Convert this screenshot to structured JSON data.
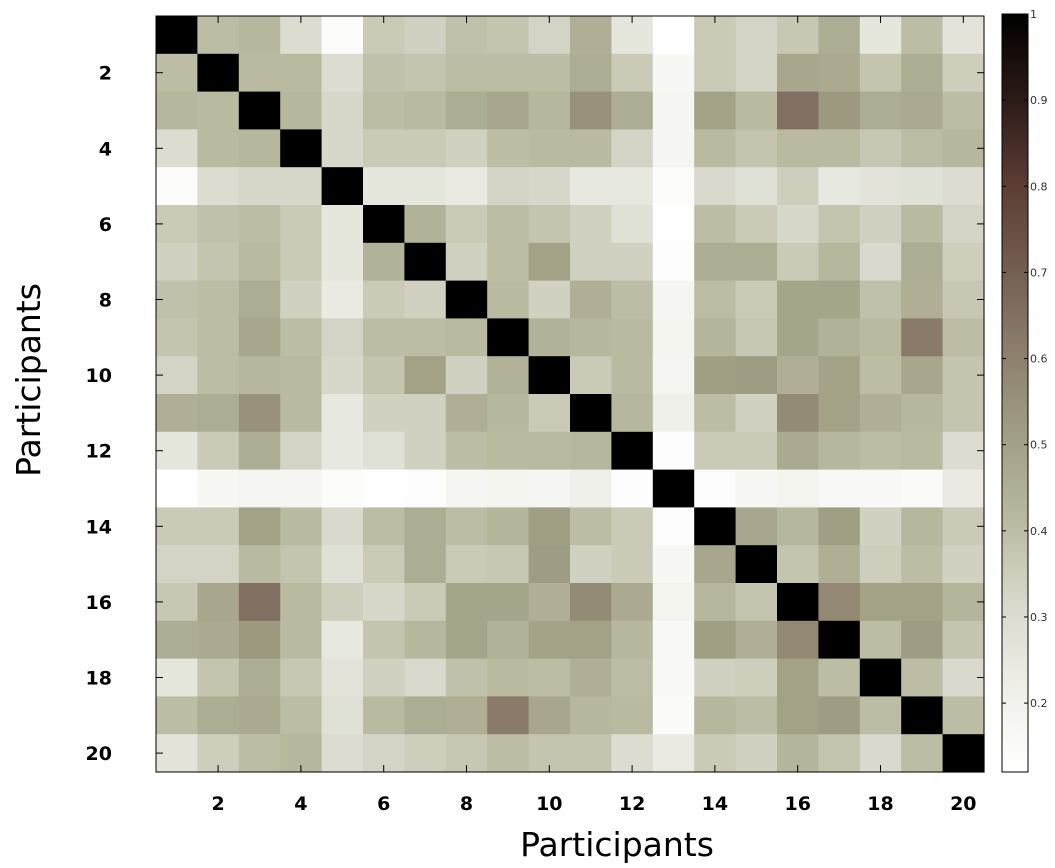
{
  "chart_data": {
    "type": "heatmap",
    "title": "",
    "xlabel": "Participants",
    "ylabel": "Participants",
    "x_ticks": [
      "2",
      "4",
      "6",
      "8",
      "10",
      "12",
      "14",
      "16",
      "18",
      "20"
    ],
    "y_ticks": [
      "2",
      "4",
      "6",
      "8",
      "10",
      "12",
      "14",
      "16",
      "18",
      "20"
    ],
    "colorbar_ticks": [
      "1",
      "0.9",
      "0.8",
      "0.7",
      "0.6",
      "0.5",
      "0.4",
      "0.3",
      "0.2"
    ],
    "colorbar_range": [
      0.12,
      1.0
    ],
    "colormap": [
      "#ffffff",
      "#efefe9",
      "#d8d9cb",
      "#b9b9a0",
      "#a09f84",
      "#8c7e6c",
      "#735c52",
      "#5a3c34",
      "#2c1a16",
      "#000000"
    ],
    "grid": false,
    "matrix": [
      [
        1.0,
        0.4,
        0.42,
        0.3,
        0.14,
        0.36,
        0.34,
        0.39,
        0.38,
        0.33,
        0.45,
        0.26,
        0.11,
        0.36,
        0.33,
        0.37,
        0.46,
        0.26,
        0.4,
        0.27
      ],
      [
        0.4,
        1.0,
        0.41,
        0.41,
        0.3,
        0.39,
        0.38,
        0.4,
        0.4,
        0.4,
        0.46,
        0.36,
        0.17,
        0.36,
        0.33,
        0.48,
        0.47,
        0.38,
        0.46,
        0.35
      ],
      [
        0.42,
        0.41,
        1.0,
        0.42,
        0.32,
        0.4,
        0.41,
        0.46,
        0.48,
        0.42,
        0.55,
        0.46,
        0.18,
        0.5,
        0.41,
        0.65,
        0.53,
        0.46,
        0.47,
        0.4
      ],
      [
        0.3,
        0.41,
        0.42,
        1.0,
        0.32,
        0.36,
        0.36,
        0.34,
        0.4,
        0.41,
        0.41,
        0.33,
        0.18,
        0.41,
        0.38,
        0.41,
        0.41,
        0.37,
        0.4,
        0.42
      ],
      [
        0.14,
        0.3,
        0.32,
        0.32,
        1.0,
        0.26,
        0.26,
        0.24,
        0.33,
        0.32,
        0.25,
        0.25,
        0.14,
        0.31,
        0.28,
        0.35,
        0.25,
        0.27,
        0.28,
        0.3
      ],
      [
        0.36,
        0.39,
        0.4,
        0.36,
        0.26,
        1.0,
        0.44,
        0.36,
        0.4,
        0.38,
        0.34,
        0.28,
        0.12,
        0.4,
        0.36,
        0.32,
        0.38,
        0.34,
        0.41,
        0.33
      ],
      [
        0.34,
        0.38,
        0.41,
        0.36,
        0.26,
        0.44,
        1.0,
        0.34,
        0.4,
        0.5,
        0.34,
        0.34,
        0.13,
        0.46,
        0.46,
        0.36,
        0.42,
        0.31,
        0.46,
        0.35
      ],
      [
        0.39,
        0.4,
        0.46,
        0.34,
        0.24,
        0.36,
        0.34,
        1.0,
        0.41,
        0.34,
        0.45,
        0.4,
        0.18,
        0.4,
        0.36,
        0.49,
        0.49,
        0.39,
        0.45,
        0.37
      ],
      [
        0.38,
        0.4,
        0.48,
        0.4,
        0.33,
        0.4,
        0.4,
        0.41,
        1.0,
        0.44,
        0.42,
        0.41,
        0.19,
        0.43,
        0.37,
        0.49,
        0.44,
        0.41,
        0.62,
        0.4
      ],
      [
        0.33,
        0.4,
        0.42,
        0.41,
        0.32,
        0.38,
        0.5,
        0.34,
        0.44,
        1.0,
        0.36,
        0.41,
        0.18,
        0.51,
        0.52,
        0.45,
        0.5,
        0.4,
        0.48,
        0.38
      ],
      [
        0.45,
        0.46,
        0.55,
        0.41,
        0.25,
        0.34,
        0.34,
        0.45,
        0.42,
        0.36,
        1.0,
        0.42,
        0.21,
        0.4,
        0.34,
        0.57,
        0.5,
        0.45,
        0.42,
        0.38
      ],
      [
        0.26,
        0.36,
        0.46,
        0.33,
        0.25,
        0.28,
        0.34,
        0.4,
        0.41,
        0.41,
        0.42,
        1.0,
        0.13,
        0.36,
        0.36,
        0.47,
        0.42,
        0.4,
        0.41,
        0.3
      ],
      [
        0.11,
        0.17,
        0.18,
        0.18,
        0.14,
        0.12,
        0.13,
        0.18,
        0.19,
        0.18,
        0.21,
        0.13,
        1.0,
        0.13,
        0.17,
        0.19,
        0.16,
        0.16,
        0.15,
        0.24
      ],
      [
        0.36,
        0.36,
        0.5,
        0.41,
        0.31,
        0.4,
        0.46,
        0.4,
        0.43,
        0.51,
        0.4,
        0.36,
        0.13,
        1.0,
        0.48,
        0.42,
        0.51,
        0.34,
        0.42,
        0.36
      ],
      [
        0.33,
        0.33,
        0.41,
        0.38,
        0.28,
        0.36,
        0.46,
        0.36,
        0.37,
        0.52,
        0.34,
        0.36,
        0.17,
        0.48,
        1.0,
        0.38,
        0.45,
        0.35,
        0.4,
        0.34
      ],
      [
        0.37,
        0.48,
        0.65,
        0.41,
        0.35,
        0.32,
        0.36,
        0.49,
        0.49,
        0.45,
        0.57,
        0.47,
        0.19,
        0.42,
        0.38,
        1.0,
        0.58,
        0.5,
        0.5,
        0.43
      ],
      [
        0.46,
        0.47,
        0.53,
        0.41,
        0.25,
        0.38,
        0.42,
        0.49,
        0.44,
        0.5,
        0.5,
        0.42,
        0.16,
        0.51,
        0.45,
        0.58,
        1.0,
        0.4,
        0.52,
        0.38
      ],
      [
        0.26,
        0.38,
        0.46,
        0.37,
        0.27,
        0.34,
        0.31,
        0.39,
        0.41,
        0.4,
        0.45,
        0.4,
        0.16,
        0.34,
        0.35,
        0.5,
        0.4,
        1.0,
        0.4,
        0.31
      ],
      [
        0.4,
        0.46,
        0.47,
        0.4,
        0.28,
        0.41,
        0.46,
        0.45,
        0.62,
        0.48,
        0.42,
        0.41,
        0.15,
        0.42,
        0.4,
        0.5,
        0.52,
        0.4,
        1.0,
        0.4
      ],
      [
        0.27,
        0.35,
        0.4,
        0.42,
        0.3,
        0.33,
        0.35,
        0.37,
        0.4,
        0.38,
        0.38,
        0.3,
        0.24,
        0.36,
        0.34,
        0.43,
        0.38,
        0.31,
        0.4,
        1.0
      ]
    ]
  }
}
